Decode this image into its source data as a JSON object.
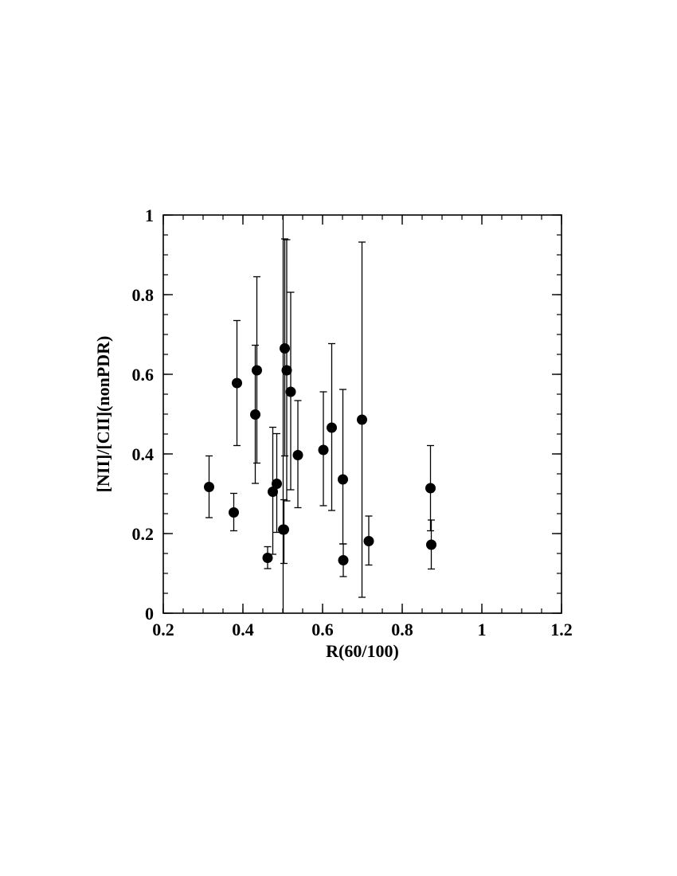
{
  "chart_data": {
    "type": "scatter",
    "title": "",
    "xlabel": "R(60/100)",
    "ylabel": "[NII]/[CII](nonPDR)",
    "xlim": [
      0.2,
      1.2
    ],
    "ylim": [
      0,
      1
    ],
    "x_ticks": [
      0.2,
      0.4,
      0.6,
      0.8,
      1,
      1.2
    ],
    "y_ticks": [
      0,
      0.2,
      0.4,
      0.6,
      0.8,
      1
    ],
    "x_tick_labels": [
      "0.2",
      "0.4",
      "0.6",
      "0.8",
      "1",
      "1.2"
    ],
    "y_tick_labels": [
      "0",
      "0.2",
      "0.4",
      "0.6",
      "0.8",
      "1"
    ],
    "x_minor_step": 0.05,
    "y_minor_step": 0.05,
    "grid": false,
    "points": [
      {
        "x": 0.315,
        "y": 0.317,
        "ylow": 0.24,
        "yhigh": 0.395
      },
      {
        "x": 0.377,
        "y": 0.253,
        "ylow": 0.207,
        "yhigh": 0.301
      },
      {
        "x": 0.385,
        "y": 0.578,
        "ylow": 0.421,
        "yhigh": 0.735
      },
      {
        "x": 0.431,
        "y": 0.499,
        "ylow": 0.326,
        "yhigh": 0.673
      },
      {
        "x": 0.435,
        "y": 0.61,
        "ylow": 0.377,
        "yhigh": 0.845
      },
      {
        "x": 0.462,
        "y": 0.139,
        "ylow": 0.112,
        "yhigh": 0.167
      },
      {
        "x": 0.475,
        "y": 0.305,
        "ylow": 0.148,
        "yhigh": 0.467
      },
      {
        "x": 0.485,
        "y": 0.325,
        "ylow": 0.203,
        "yhigh": 0.451
      },
      {
        "x": 0.501,
        "y": 0.21,
        "ylow": 0.0,
        "yhigh": 1.0
      },
      {
        "x": 0.503,
        "y": 0.21,
        "ylow": 0.125,
        "yhigh": 0.285
      },
      {
        "x": 0.505,
        "y": 0.665,
        "ylow": 0.395,
        "yhigh": 0.94
      },
      {
        "x": 0.51,
        "y": 0.61,
        "ylow": 0.282,
        "yhigh": 0.938
      },
      {
        "x": 0.52,
        "y": 0.556,
        "ylow": 0.31,
        "yhigh": 0.806
      },
      {
        "x": 0.538,
        "y": 0.397,
        "ylow": 0.265,
        "yhigh": 0.534
      },
      {
        "x": 0.602,
        "y": 0.41,
        "ylow": 0.27,
        "yhigh": 0.556
      },
      {
        "x": 0.623,
        "y": 0.466,
        "ylow": 0.258,
        "yhigh": 0.677
      },
      {
        "x": 0.651,
        "y": 0.336,
        "ylow": 0.174,
        "yhigh": 0.562
      },
      {
        "x": 0.652,
        "y": 0.133,
        "ylow": 0.092,
        "yhigh": 0.174
      },
      {
        "x": 0.699,
        "y": 0.486,
        "ylow": 0.04,
        "yhigh": 0.932
      },
      {
        "x": 0.716,
        "y": 0.181,
        "ylow": 0.121,
        "yhigh": 0.244
      },
      {
        "x": 0.871,
        "y": 0.314,
        "ylow": 0.207,
        "yhigh": 0.421
      },
      {
        "x": 0.873,
        "y": 0.172,
        "ylow": 0.111,
        "yhigh": 0.234
      }
    ]
  }
}
